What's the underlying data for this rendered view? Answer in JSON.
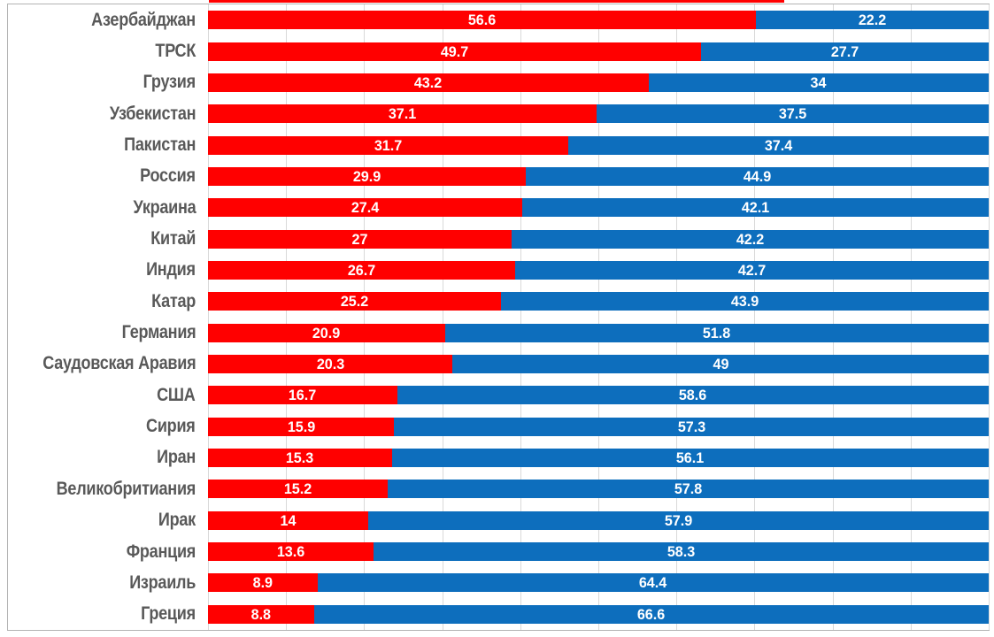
{
  "styles": {
    "red": "#ff0000",
    "blue": "#0d6ebd",
    "label_color": "#595959",
    "grid_color": "#d9d9d9",
    "border_color": "#b3b3b3",
    "background": "#ffffff",
    "value_text_color": "#ffffff"
  },
  "chart_data": {
    "type": "bar",
    "orientation": "horizontal",
    "stacking": "row-normalized (each red+blue pair fills the full plot width)",
    "title": "",
    "xlabel": "",
    "ylabel": "",
    "legend": "none visible",
    "grid": {
      "vertical_gridlines": true,
      "count": 11,
      "spacing": "every 10% of plot width"
    },
    "categories": [
      "Азербайджан",
      "ТРСК",
      "Грузия",
      "Узбекистан",
      "Пакистан",
      "Россия",
      "Украина",
      "Китай",
      "Индия",
      "Катар",
      "Германия",
      "Саудовская Аравия",
      "США",
      "Сирия",
      "Иран",
      "Великобритиания",
      "Ирак",
      "Франция",
      "Израиль",
      "Греция"
    ],
    "series": [
      {
        "name": "red",
        "color": "#ff0000",
        "values": [
          56.6,
          49.7,
          43.2,
          37.1,
          31.7,
          29.9,
          27.4,
          27,
          26.7,
          25.2,
          20.9,
          20.3,
          16.7,
          15.9,
          15.3,
          15.2,
          14,
          13.6,
          8.9,
          8.8
        ],
        "labels": [
          "56.6",
          "49.7",
          "43.2",
          "37.1",
          "31.7",
          "29.9",
          "27.4",
          "27",
          "26.7",
          "25.2",
          "20.9",
          "20.3",
          "16.7",
          "15.9",
          "15.3",
          "15.2",
          "14",
          "13.6",
          "8.9",
          "8.8"
        ]
      },
      {
        "name": "blue",
        "color": "#0d6ebd",
        "values": [
          22.2,
          27.7,
          34,
          37.5,
          37.4,
          44.9,
          42.1,
          42.2,
          42.7,
          43.9,
          51.8,
          49,
          58.6,
          57.3,
          56.1,
          57.8,
          57.9,
          58.3,
          64.4,
          66.6
        ],
        "labels": [
          "22.2",
          "27.7",
          "34",
          "37.5",
          "37.4",
          "44.9",
          "42.1",
          "42.2",
          "42.7",
          "43.9",
          "51.8",
          "49",
          "58.6",
          "57.3",
          "56.1",
          "57.8",
          "57.9",
          "58.3",
          "64.4",
          "66.6"
        ]
      }
    ],
    "cropped_top_row_sliver": {
      "visible": true,
      "red_end_fraction_of_plot": 0.738
    }
  }
}
